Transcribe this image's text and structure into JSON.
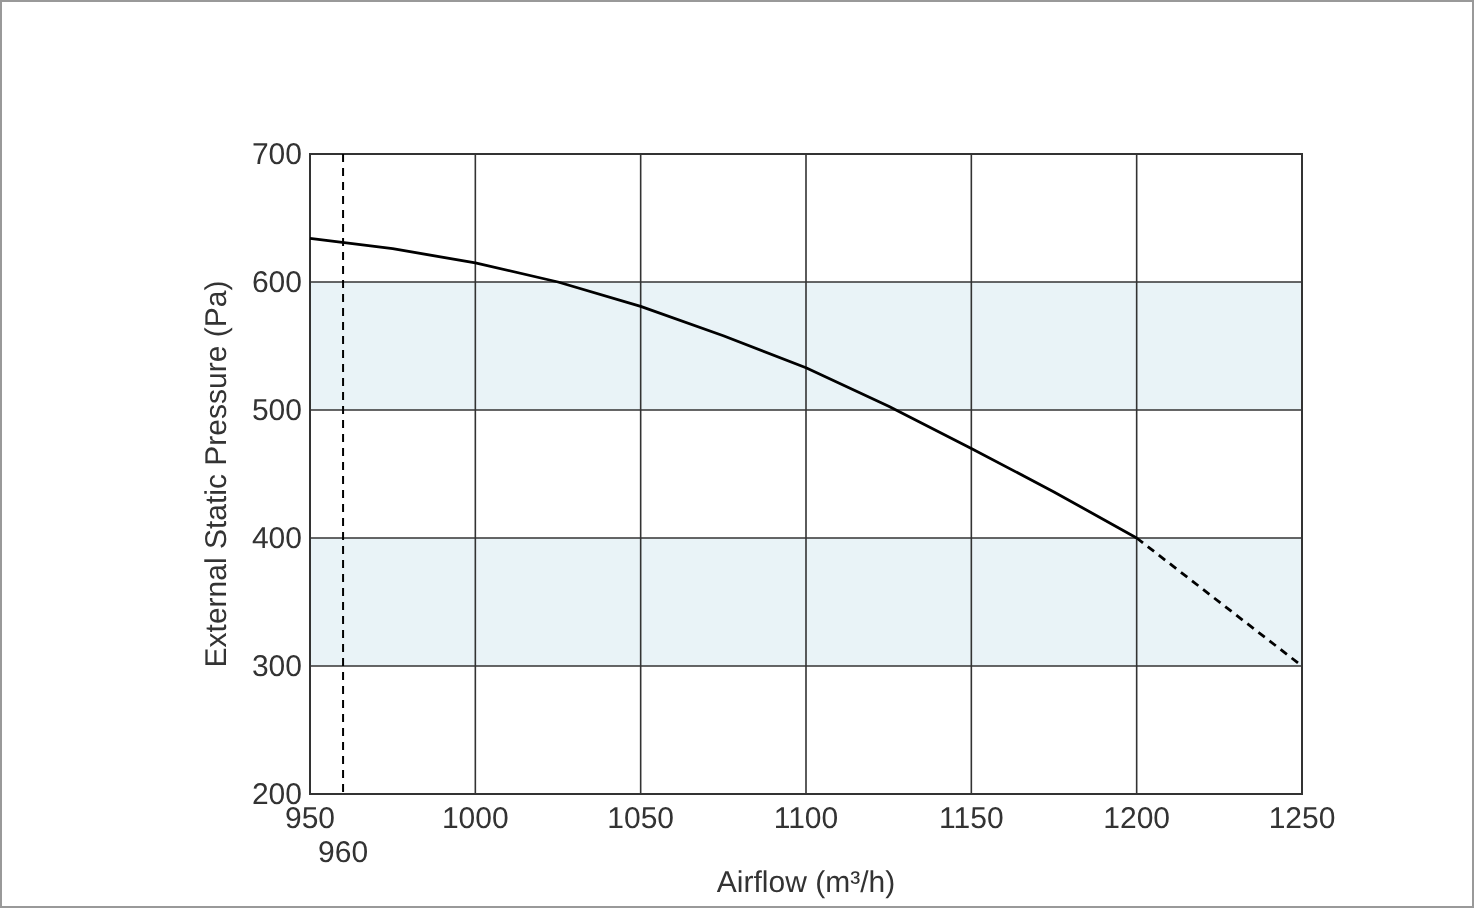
{
  "chart_data": {
    "type": "line",
    "xlabel": "Airflow (m³/h)",
    "ylabel": "External Static Pressure (Pa)",
    "xlim": [
      950,
      1250
    ],
    "xticks": [
      950,
      1000,
      1050,
      1100,
      1150,
      1200,
      1250
    ],
    "ylim": [
      200,
      700
    ],
    "yticks": [
      200,
      300,
      400,
      500,
      600,
      700
    ],
    "grid": true,
    "series": [
      {
        "color": "#000000",
        "line_style": "solid",
        "x": [
          950,
          975,
          1000,
          1025,
          1050,
          1075,
          1100,
          1125,
          1150,
          1175,
          1200
        ],
        "values": [
          634,
          626,
          615,
          600,
          581,
          558,
          533,
          503,
          470,
          436,
          400
        ]
      },
      {
        "color": "#000000",
        "line_style": "dashed",
        "x": [
          1200,
          1250
        ],
        "values": [
          400,
          300
        ]
      }
    ],
    "bands": [
      {
        "axis": "y",
        "from": 300,
        "to": 400,
        "color": "#e9f3f7"
      },
      {
        "axis": "y",
        "from": 500,
        "to": 600,
        "color": "#e9f3f7"
      }
    ],
    "ref_lines": [
      {
        "axis": "x",
        "value": 960,
        "label": "960",
        "line_style": "dashed",
        "color": "#000000"
      }
    ]
  }
}
